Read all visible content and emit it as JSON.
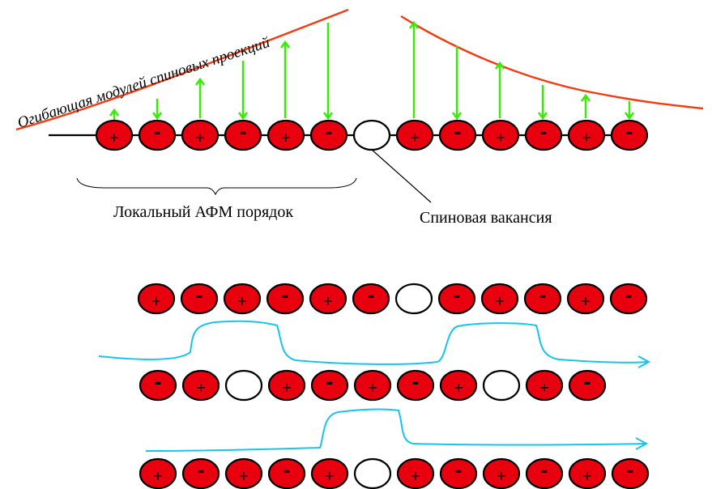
{
  "labels": {
    "envelope": "Огибающая модулей спиновых проекций",
    "local_order": "Локальный АФМ порядок",
    "vacancy": "Спиновая вакансия"
  },
  "symbols": {
    "plus": "+",
    "minus": "-"
  },
  "colors": {
    "site": "#e8000f",
    "spin_arrow": "#33ee00",
    "envelope": "#f53a10",
    "path": "#19c4ea"
  },
  "chains": [
    {
      "name": "chain-top",
      "sites": [
        "+",
        "-",
        "+",
        "-",
        "+",
        "-",
        "0",
        "+",
        "-",
        "+",
        "-",
        "+",
        "-"
      ]
    },
    {
      "name": "chain-row-1",
      "sites": [
        "+",
        "-",
        "+",
        "-",
        "+",
        "-",
        "0",
        "-",
        "+",
        "-",
        "+",
        "-"
      ]
    },
    {
      "name": "chain-row-2",
      "sites": [
        "-",
        "+",
        "0",
        "+",
        "-",
        "+",
        "-",
        "+",
        "0",
        "+",
        "-"
      ]
    },
    {
      "name": "chain-row-3",
      "sites": [
        "+",
        "-",
        "+",
        "-",
        "+",
        "0",
        "+",
        "-",
        "+",
        "-",
        "+",
        "-"
      ]
    }
  ]
}
